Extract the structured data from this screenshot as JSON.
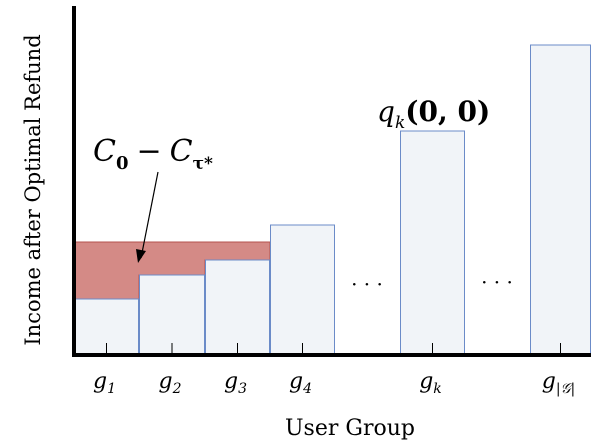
{
  "chart_data": {
    "type": "bar",
    "xlabel": "User Group",
    "ylabel": "Income after Optimal Refund",
    "categories": [
      "g1",
      "g2",
      "g3",
      "g4",
      "gk",
      "g|G|"
    ],
    "bars": [
      {
        "name": "g1",
        "sym": "g",
        "sub": "1",
        "value": 56
      },
      {
        "name": "g2",
        "sym": "g",
        "sub": "2",
        "value": 80
      },
      {
        "name": "g3",
        "sym": "g",
        "sub": "3",
        "value": 95
      },
      {
        "name": "g4",
        "sym": "g",
        "sub": "4",
        "value": 130
      },
      {
        "name": "gk",
        "sym": "g",
        "sub": "k",
        "value": 224
      },
      {
        "name": "g|G|",
        "sym": "g",
        "sub": "|𝒢|",
        "value": 310
      }
    ],
    "shaded_top": 113,
    "ellipsis": [
      "· · ·",
      "· · ·"
    ],
    "annotations": {
      "shaded_label": {
        "base": "C",
        "sub1": "0",
        "minus": "−",
        "base2": "C",
        "sub2": "τ*"
      },
      "bar_label": {
        "fn": "q",
        "sub": "k",
        "args": "(0, 0)"
      }
    },
    "colors": {
      "bar_fill": "#f1f4f8",
      "bar_edge": "#6b8bc8",
      "shade": "#d48a86",
      "shade_edge": "#b5534f",
      "axis": "#000000"
    },
    "grid": false
  }
}
